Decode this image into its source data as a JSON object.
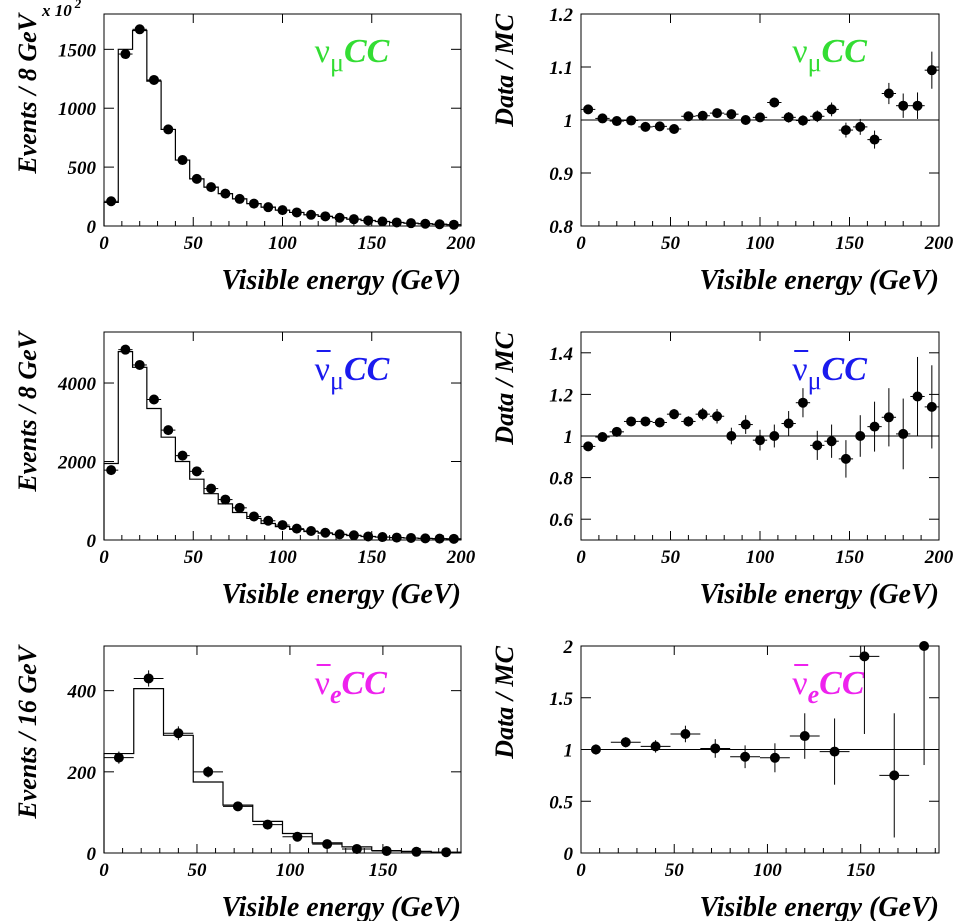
{
  "colors": {
    "numu": "#33dd33",
    "numubar": "#1a1aee",
    "nuebar": "#ee22ee",
    "ink": "#000000"
  },
  "chart_data": [
    {
      "id": "p1",
      "type": "histogram+scatter",
      "process": {
        "nu": "ν",
        "bar": false,
        "sub": "μ",
        "cc": "CC",
        "color": "#33dd33"
      },
      "ylabel": "Events / 8 GeV",
      "xlabel": "Visible energy (GeV)",
      "xlim": [
        0,
        200
      ],
      "ylim": [
        0,
        1800
      ],
      "xticks": [
        0,
        50,
        100,
        150,
        200
      ],
      "yticks": [
        0,
        500,
        1000,
        1500
      ],
      "ytick_labels": [
        "0",
        "500",
        "1000",
        "1500"
      ],
      "scale_label": "x 10",
      "scale_exp": "2",
      "bin_edges": [
        0,
        8,
        16,
        24,
        32,
        40,
        48,
        56,
        64,
        72,
        80,
        88,
        96,
        104,
        112,
        120,
        128,
        136,
        144,
        152,
        160,
        168,
        176,
        184,
        192,
        200
      ],
      "mc": [
        200,
        1500,
        1660,
        1230,
        820,
        560,
        400,
        330,
        275,
        230,
        190,
        160,
        135,
        115,
        95,
        82,
        70,
        58,
        47,
        38,
        30,
        24,
        19,
        15,
        11
      ],
      "data": [
        210,
        1460,
        1670,
        1240,
        820,
        560,
        400,
        330,
        275,
        230,
        190,
        160,
        135,
        115,
        95,
        82,
        70,
        58,
        47,
        38,
        30,
        24,
        19,
        15,
        11
      ],
      "data_err": [
        6,
        18,
        20,
        16,
        14,
        12,
        10,
        9,
        8,
        8,
        7,
        6,
        6,
        5,
        5,
        5,
        4,
        4,
        4,
        3,
        3,
        3,
        3,
        3,
        2
      ]
    },
    {
      "id": "p2",
      "type": "ratio",
      "process": {
        "nu": "ν",
        "bar": false,
        "sub": "μ",
        "cc": "CC",
        "color": "#33dd33"
      },
      "ylabel": "Data / MC",
      "xlabel": "Visible energy (GeV)",
      "xlim": [
        0,
        200
      ],
      "ylim": [
        0.8,
        1.2
      ],
      "xticks": [
        0,
        50,
        100,
        150,
        200
      ],
      "yticks": [
        0.8,
        0.9,
        1,
        1.1,
        1.2
      ],
      "ytick_labels": [
        "0.8",
        "0.9",
        "1",
        "1.1",
        "1.2"
      ],
      "reference": 1,
      "x": [
        4,
        12,
        20,
        28,
        36,
        44,
        52,
        60,
        68,
        76,
        84,
        92,
        100,
        108,
        116,
        124,
        132,
        140,
        148,
        156,
        164,
        172,
        180,
        188,
        196
      ],
      "y": [
        1.02,
        1.003,
        0.998,
        0.999,
        0.987,
        0.988,
        0.983,
        1.007,
        1.008,
        1.013,
        1.011,
        1.0,
        1.005,
        1.033,
        1.005,
        0.999,
        1.007,
        1.02,
        0.981,
        0.987,
        0.963,
        1.05,
        1.027,
        1.027,
        1.094
      ],
      "y_err": [
        0.005,
        0.004,
        0.004,
        0.005,
        0.006,
        0.006,
        0.006,
        0.006,
        0.006,
        0.007,
        0.007,
        0.008,
        0.008,
        0.009,
        0.01,
        0.01,
        0.011,
        0.013,
        0.014,
        0.015,
        0.017,
        0.02,
        0.023,
        0.025,
        0.035
      ],
      "x_halfwidth": 4
    },
    {
      "id": "p3",
      "type": "histogram+scatter",
      "process": {
        "nu": "ν",
        "bar": true,
        "sub": "μ",
        "cc": "CC",
        "color": "#1a1aee"
      },
      "ylabel": "Events / 8 GeV",
      "xlabel": "Visible energy (GeV)",
      "xlim": [
        0,
        200
      ],
      "ylim": [
        0,
        5300
      ],
      "xticks": [
        0,
        50,
        100,
        150,
        200
      ],
      "yticks": [
        0,
        2000,
        4000
      ],
      "ytick_labels": [
        "0",
        "2000",
        "4000"
      ],
      "bin_edges": [
        0,
        8,
        16,
        24,
        32,
        40,
        48,
        56,
        64,
        72,
        80,
        88,
        96,
        104,
        112,
        120,
        128,
        136,
        144,
        152,
        160,
        168,
        176,
        184,
        192,
        200
      ],
      "mc": [
        1950,
        4800,
        4400,
        3350,
        2620,
        2000,
        1550,
        1180,
        920,
        700,
        550,
        420,
        340,
        270,
        215,
        175,
        140,
        115,
        90,
        75,
        60,
        50,
        40,
        33,
        28
      ],
      "data": [
        1780,
        4850,
        4460,
        3580,
        2800,
        2150,
        1750,
        1310,
        1030,
        820,
        600,
        490,
        380,
        290,
        230,
        185,
        145,
        120,
        90,
        75,
        62,
        52,
        42,
        35,
        30
      ],
      "data_err": [
        40,
        70,
        65,
        60,
        50,
        45,
        40,
        35,
        32,
        28,
        25,
        22,
        20,
        17,
        15,
        14,
        12,
        11,
        10,
        9,
        8,
        7,
        7,
        6,
        6
      ]
    },
    {
      "id": "p4",
      "type": "ratio",
      "process": {
        "nu": "ν",
        "bar": true,
        "sub": "μ",
        "cc": "CC",
        "color": "#1a1aee"
      },
      "ylabel": "Data / MC",
      "xlabel": "Visible energy (GeV)",
      "xlim": [
        0,
        200
      ],
      "ylim": [
        0.5,
        1.5
      ],
      "xticks": [
        0,
        50,
        100,
        150,
        200
      ],
      "yticks": [
        0.6,
        0.8,
        1,
        1.2,
        1.4
      ],
      "ytick_labels": [
        "0.6",
        "0.8",
        "1",
        "1.2",
        "1.4"
      ],
      "reference": 1,
      "x": [
        4,
        12,
        20,
        28,
        36,
        44,
        52,
        60,
        68,
        76,
        84,
        92,
        100,
        108,
        116,
        124,
        132,
        140,
        148,
        156,
        164,
        172,
        180,
        188,
        196
      ],
      "y": [
        0.95,
        0.995,
        1.02,
        1.07,
        1.07,
        1.065,
        1.105,
        1.07,
        1.105,
        1.095,
        1.0,
        1.055,
        0.98,
        1.0,
        1.06,
        1.16,
        0.955,
        0.975,
        0.89,
        1.0,
        1.045,
        1.09,
        1.01,
        1.19,
        1.14
      ],
      "y_err": [
        0.01,
        0.01,
        0.01,
        0.015,
        0.015,
        0.02,
        0.025,
        0.025,
        0.03,
        0.035,
        0.04,
        0.045,
        0.05,
        0.055,
        0.06,
        0.07,
        0.07,
        0.08,
        0.09,
        0.1,
        0.12,
        0.14,
        0.17,
        0.19,
        0.2
      ],
      "x_halfwidth": 4
    },
    {
      "id": "p5",
      "type": "histogram+scatter",
      "process": {
        "nu": "ν",
        "bar": true,
        "sub": "e",
        "cc": "CC",
        "color": "#ee22ee"
      },
      "ylabel": "Events / 16 GeV",
      "xlabel": "Visible energy (GeV)",
      "xlim": [
        0,
        192
      ],
      "ylim": [
        0,
        510
      ],
      "xticks": [
        0,
        50,
        100,
        150
      ],
      "yticks": [
        0,
        200,
        400
      ],
      "ytick_labels": [
        "0",
        "200",
        "400"
      ],
      "bin_edges": [
        0,
        16,
        32,
        48,
        64,
        80,
        96,
        112,
        128,
        144,
        160,
        176,
        192
      ],
      "mc": [
        245,
        405,
        290,
        175,
        118,
        78,
        48,
        25,
        15,
        6,
        4,
        2
      ],
      "data": [
        235,
        430,
        295,
        200,
        115,
        70,
        40,
        22,
        10,
        5,
        3,
        2
      ],
      "data_err": [
        15,
        20,
        17,
        14,
        11,
        8,
        6,
        5,
        3,
        2,
        2,
        1
      ]
    },
    {
      "id": "p6",
      "type": "ratio",
      "process": {
        "nu": "ν",
        "bar": true,
        "sub": "e",
        "cc": "CC",
        "color": "#ee22ee"
      },
      "ylabel": "Data / MC",
      "xlabel": "Visible energy (GeV)",
      "xlim": [
        0,
        192
      ],
      "ylim": [
        0,
        2
      ],
      "xticks": [
        0,
        50,
        100,
        150
      ],
      "yticks": [
        0,
        0.5,
        1,
        1.5,
        2
      ],
      "ytick_labels": [
        "0",
        "0.5",
        "1",
        "1.5",
        "2"
      ],
      "reference": 1,
      "x": [
        8,
        24,
        40,
        56,
        72,
        88,
        104,
        120,
        136,
        152,
        168,
        184
      ],
      "y": [
        1.0,
        1.07,
        1.03,
        1.15,
        1.01,
        0.93,
        0.92,
        1.13,
        0.98,
        1.9,
        0.75,
        2.0
      ],
      "y_err": [
        0.05,
        0.05,
        0.06,
        0.08,
        0.09,
        0.11,
        0.14,
        0.22,
        0.32,
        0.75,
        0.6,
        1.15
      ],
      "x_halfwidth": 8
    }
  ]
}
